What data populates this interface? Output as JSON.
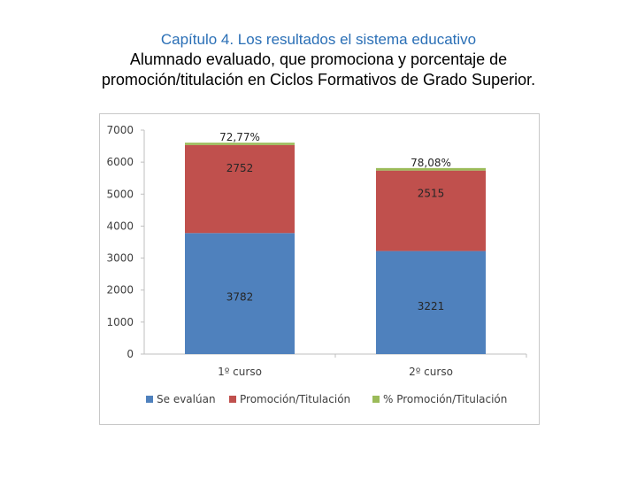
{
  "header": {
    "chapter": "Capítulo 4. Los resultados el sistema educativo",
    "title_line1": "Alumnado evaluado, que promociona y porcentaje de",
    "title_line2": "promoción/titulación en Ciclos Formativos de Grado Superior."
  },
  "chart_data": {
    "type": "bar",
    "stacked": true,
    "categories": [
      "1º curso",
      "2º curso"
    ],
    "series": [
      {
        "name": "Se evalúan",
        "values": [
          3782,
          3221
        ],
        "labels": [
          "3782",
          "3221"
        ],
        "color": "#4f81bd"
      },
      {
        "name": "Promoción/Titulación",
        "values": [
          2752,
          2515
        ],
        "labels": [
          "2752",
          "2515"
        ],
        "color": "#c0504d"
      },
      {
        "name": "% Promoción/Titulación",
        "values": [
          72.77,
          78.08
        ],
        "labels": [
          "72,77%",
          "78,08%"
        ],
        "color": "#9bbb59"
      }
    ],
    "y_ticks": [
      "0",
      "1000",
      "2000",
      "3000",
      "4000",
      "5000",
      "6000",
      "7000"
    ],
    "ylim": [
      0,
      7000
    ],
    "grid": false,
    "legend_position": "bottom"
  }
}
